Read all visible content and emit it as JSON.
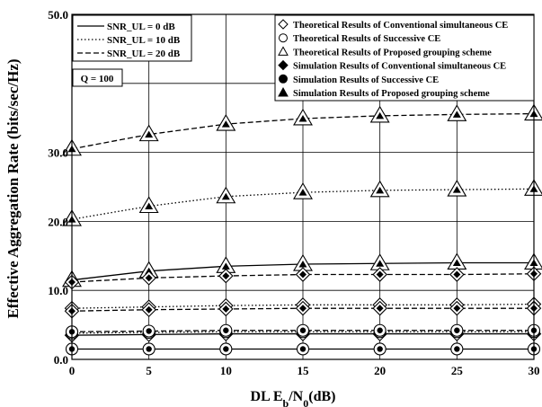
{
  "chart_data": {
    "type": "line",
    "xlabel": "DL E_b/N_0(dB)",
    "ylabel": "Effective Aggregation Rate (bits/sec/Hz)",
    "x": [
      0,
      5,
      10,
      15,
      20,
      25,
      30
    ],
    "xlim": [
      0,
      30
    ],
    "ylim": [
      0,
      50
    ],
    "x_ticks": [
      "0",
      "5",
      "10",
      "15",
      "20",
      "25",
      "30"
    ],
    "y_ticks": [
      "0.0",
      "10.0",
      "20.0",
      "30.0",
      "50.0"
    ],
    "grid": true,
    "annotation": "Q = 100",
    "legend_line": [
      {
        "label": "SNR_UL = 0 dB",
        "style": "solid"
      },
      {
        "label": "SNR_UL = 10 dB",
        "style": "dotted"
      },
      {
        "label": "SNR_UL = 20 dB",
        "style": "dashed"
      }
    ],
    "legend_marker": [
      {
        "label": "Theoretical Results of Conventional simultaneous CE",
        "marker": "diamond",
        "filled": false
      },
      {
        "label": "Theoretical Results of Successive CE",
        "marker": "circle",
        "filled": false
      },
      {
        "label": "Theoretical Results of Proposed grouping scheme",
        "marker": "triangle",
        "filled": false
      },
      {
        "label": "Simulation Results of Conventional simultaneous CE",
        "marker": "diamond",
        "filled": true
      },
      {
        "label": "Simulation Results of Successive CE",
        "marker": "circle",
        "filled": true
      },
      {
        "label": "Simulation Results of Proposed grouping scheme",
        "marker": "triangle",
        "filled": true
      }
    ],
    "series": [
      {
        "style": "solid",
        "marker": "circle",
        "values": [
          1.5,
          1.5,
          1.5,
          1.5,
          1.5,
          1.5,
          1.5
        ]
      },
      {
        "style": "solid",
        "marker": "diamond",
        "values": [
          3.5,
          3.6,
          3.7,
          3.7,
          3.7,
          3.7,
          3.7
        ]
      },
      {
        "style": "solid",
        "marker": "triangle",
        "values": [
          11.5,
          12.8,
          13.5,
          13.8,
          13.9,
          14.0,
          14.0
        ]
      },
      {
        "style": "dotted",
        "marker": "circle",
        "values": [
          3.8,
          3.9,
          4.0,
          4.0,
          4.0,
          4.0,
          4.0
        ]
      },
      {
        "style": "dotted",
        "marker": "diamond",
        "values": [
          7.4,
          7.6,
          7.8,
          7.9,
          7.9,
          7.9,
          8.0
        ]
      },
      {
        "style": "dotted",
        "marker": "triangle",
        "values": [
          20.3,
          22.2,
          23.6,
          24.2,
          24.5,
          24.6,
          24.7
        ]
      },
      {
        "style": "dashed",
        "marker": "circle",
        "values": [
          4.0,
          4.1,
          4.2,
          4.2,
          4.2,
          4.2,
          4.2
        ]
      },
      {
        "style": "dashed",
        "marker": "diamond",
        "values": [
          7.0,
          7.2,
          7.3,
          7.4,
          7.4,
          7.4,
          7.4
        ]
      },
      {
        "style": "dashed",
        "marker": "triangle",
        "values": [
          30.5,
          32.6,
          34.1,
          34.9,
          35.3,
          35.5,
          35.6
        ]
      },
      {
        "style": "dashed",
        "marker": "diamond",
        "values": [
          11.2,
          11.8,
          12.1,
          12.3,
          12.3,
          12.3,
          12.4
        ]
      }
    ]
  }
}
